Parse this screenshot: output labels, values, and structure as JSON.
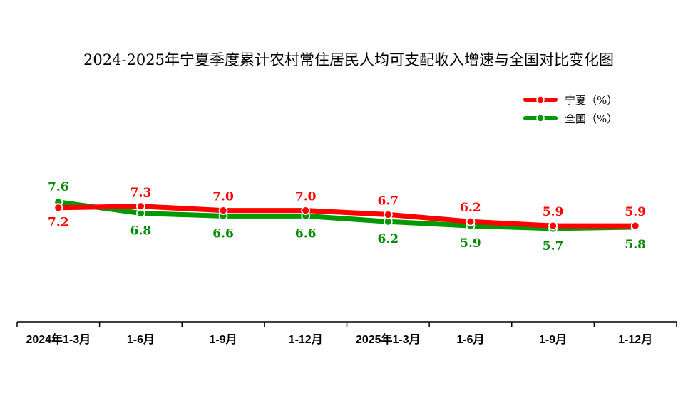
{
  "chart_data": {
    "type": "line",
    "title": "2024-2025年宁夏季度累计农村常住居民人均可支配收入增速与全国对比变化图",
    "categories": [
      "2024年1-3月",
      "1-6月",
      "1-9月",
      "1-12月",
      "2025年1-3月",
      "1-6月",
      "1-9月",
      "1-12月"
    ],
    "series": [
      {
        "name": "宁夏（%）",
        "color": "#ff0000",
        "values": [
          7.2,
          7.3,
          7.0,
          7.0,
          6.7,
          6.2,
          5.9,
          5.9
        ]
      },
      {
        "name": "全国（%）",
        "color": "#009900",
        "values": [
          7.6,
          6.8,
          6.6,
          6.6,
          6.2,
          5.9,
          5.7,
          5.8
        ]
      }
    ],
    "value_labels": {
      "ningxia": [
        "7.2",
        "7.3",
        "7.0",
        "7.0",
        "6.7",
        "6.2",
        "5.9",
        "5.9"
      ],
      "national": [
        "7.6",
        "6.8",
        "6.6",
        "6.6",
        "6.2",
        "5.9",
        "5.7",
        "5.8"
      ]
    },
    "legend_position": "top-right",
    "grid": false,
    "xlabel": "",
    "ylabel": ""
  }
}
